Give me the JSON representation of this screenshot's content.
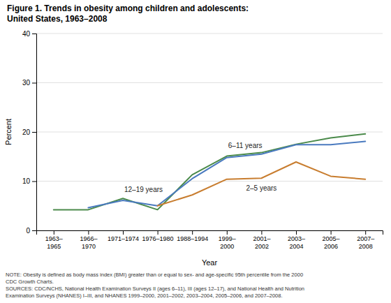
{
  "chart_data": {
    "type": "line",
    "title": "Figure 1. Trends in obesity among children and adolescents:",
    "subtitle": "United States, 1963–2008",
    "x_label": "Year",
    "y_label": "Percent",
    "categories": [
      "1963–\n1965",
      "1966–\n1970",
      "1971–1974",
      "1976–1980",
      "1988–1994",
      "1999–\n2000",
      "2001–\n2002",
      "2003–\n2004",
      "2005–\n2006",
      "2007–\n2008"
    ],
    "series": [
      {
        "name": "6–11 years",
        "color": "#4a8a4a",
        "values": [
          4.2,
          4.2,
          6.5,
          4.2,
          11.3,
          15.1,
          15.8,
          17.5,
          18.8,
          19.6
        ]
      },
      {
        "name": "12–19 years",
        "color": "#4a7abf",
        "values": [
          null,
          4.6,
          6.1,
          5.0,
          10.5,
          14.8,
          15.5,
          17.4,
          17.4,
          18.1
        ]
      },
      {
        "name": "2–5 years",
        "color": "#c87d2f",
        "values": [
          null,
          null,
          null,
          5.0,
          7.2,
          10.4,
          10.6,
          13.9,
          11.0,
          10.4
        ]
      }
    ],
    "ylim": [
      0,
      40
    ],
    "yticks": [
      0,
      10,
      20,
      30,
      40
    ],
    "grid": true,
    "note": "NOTE: Obesity is defined as body mass index (BMI) greater than or equal to sex- and age-specific 95th percentile from the 2000\nCDC Growth Charts.\nSOURCES: CDC/NCHS, National Health Examination Surveys II (ages 6–11), III (ages 12–17), and National Health and Nutrition\nExamination Surveys (NHANES) I–III, and NHANES 1999–2000, 2001–2002, 2003–2004, 2005–2006, and 2007–2008."
  }
}
